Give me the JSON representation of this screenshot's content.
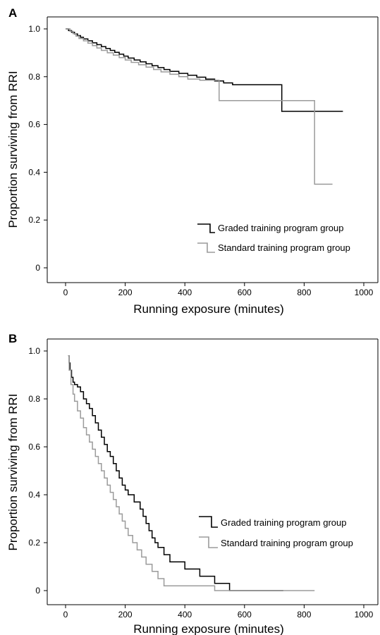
{
  "chart_data": [
    {
      "panel": "A",
      "type": "line",
      "step": true,
      "xlabel": "Running exposure (minutes)",
      "ylabel": "Proportion surviving from RRI",
      "xlim": [
        0,
        1000
      ],
      "ylim": [
        0,
        1.0
      ],
      "xticks": [
        "0",
        "200",
        "400",
        "600",
        "800",
        "1000"
      ],
      "yticks": [
        "0",
        "0.2",
        "0.4",
        "0.6",
        "0.8",
        "1.0"
      ],
      "legend_position": "bottom-right",
      "series": [
        {
          "name": "Graded training program group",
          "color": "#000000",
          "points": [
            [
              0,
              1.0
            ],
            [
              10,
              0.993
            ],
            [
              20,
              0.986
            ],
            [
              30,
              0.979
            ],
            [
              40,
              0.972
            ],
            [
              50,
              0.965
            ],
            [
              60,
              0.958
            ],
            [
              75,
              0.95
            ],
            [
              90,
              0.942
            ],
            [
              105,
              0.934
            ],
            [
              120,
              0.926
            ],
            [
              135,
              0.918
            ],
            [
              150,
              0.91
            ],
            [
              165,
              0.902
            ],
            [
              180,
              0.894
            ],
            [
              195,
              0.886
            ],
            [
              210,
              0.878
            ],
            [
              230,
              0.87
            ],
            [
              250,
              0.862
            ],
            [
              270,
              0.854
            ],
            [
              290,
              0.846
            ],
            [
              310,
              0.838
            ],
            [
              330,
              0.83
            ],
            [
              350,
              0.822
            ],
            [
              380,
              0.814
            ],
            [
              410,
              0.806
            ],
            [
              440,
              0.798
            ],
            [
              470,
              0.79
            ],
            [
              500,
              0.782
            ],
            [
              530,
              0.774
            ],
            [
              560,
              0.766
            ],
            [
              725,
              0.655
            ],
            [
              930,
              0.655
            ]
          ]
        },
        {
          "name": "Standard training program group",
          "color": "#9b9b9b",
          "points": [
            [
              0,
              1.0
            ],
            [
              15,
              0.99
            ],
            [
              25,
              0.98
            ],
            [
              35,
              0.97
            ],
            [
              45,
              0.96
            ],
            [
              60,
              0.95
            ],
            [
              75,
              0.94
            ],
            [
              90,
              0.93
            ],
            [
              105,
              0.92
            ],
            [
              120,
              0.91
            ],
            [
              140,
              0.9
            ],
            [
              160,
              0.89
            ],
            [
              180,
              0.88
            ],
            [
              200,
              0.87
            ],
            [
              220,
              0.86
            ],
            [
              245,
              0.85
            ],
            [
              270,
              0.84
            ],
            [
              295,
              0.83
            ],
            [
              320,
              0.82
            ],
            [
              350,
              0.81
            ],
            [
              380,
              0.8
            ],
            [
              410,
              0.79
            ],
            [
              450,
              0.785
            ],
            [
              515,
              0.7
            ],
            [
              835,
              0.35
            ],
            [
              895,
              0.35
            ]
          ]
        }
      ]
    },
    {
      "panel": "B",
      "type": "line",
      "step": true,
      "xlabel": "Running exposure (minutes)",
      "ylabel": "Proportion surviving from RRI",
      "xlim": [
        0,
        1000
      ],
      "ylim": [
        0,
        1.0
      ],
      "xticks": [
        "0",
        "200",
        "400",
        "600",
        "800",
        "1000"
      ],
      "yticks": [
        "0",
        "0.2",
        "0.4",
        "0.6",
        "0.8",
        "1.0"
      ],
      "legend_position": "right",
      "series": [
        {
          "name": "Graded training program group",
          "color": "#000000",
          "points": [
            [
              10,
              0.98
            ],
            [
              12,
              0.95
            ],
            [
              15,
              0.92
            ],
            [
              20,
              0.89
            ],
            [
              25,
              0.87
            ],
            [
              30,
              0.86
            ],
            [
              40,
              0.85
            ],
            [
              50,
              0.83
            ],
            [
              60,
              0.8
            ],
            [
              70,
              0.78
            ],
            [
              80,
              0.76
            ],
            [
              90,
              0.73
            ],
            [
              100,
              0.7
            ],
            [
              110,
              0.67
            ],
            [
              120,
              0.64
            ],
            [
              130,
              0.61
            ],
            [
              140,
              0.58
            ],
            [
              150,
              0.56
            ],
            [
              160,
              0.53
            ],
            [
              170,
              0.5
            ],
            [
              180,
              0.47
            ],
            [
              190,
              0.44
            ],
            [
              200,
              0.42
            ],
            [
              210,
              0.4
            ],
            [
              230,
              0.37
            ],
            [
              250,
              0.34
            ],
            [
              260,
              0.31
            ],
            [
              270,
              0.28
            ],
            [
              280,
              0.25
            ],
            [
              290,
              0.22
            ],
            [
              300,
              0.2
            ],
            [
              310,
              0.18
            ],
            [
              330,
              0.15
            ],
            [
              350,
              0.12
            ],
            [
              400,
              0.09
            ],
            [
              450,
              0.06
            ],
            [
              500,
              0.03
            ],
            [
              550,
              0.0
            ],
            [
              730,
              0.0
            ]
          ]
        },
        {
          "name": "Standard training program group",
          "color": "#9b9b9b",
          "points": [
            [
              8,
              0.98
            ],
            [
              12,
              0.92
            ],
            [
              18,
              0.86
            ],
            [
              25,
              0.82
            ],
            [
              30,
              0.79
            ],
            [
              40,
              0.75
            ],
            [
              50,
              0.72
            ],
            [
              60,
              0.68
            ],
            [
              70,
              0.65
            ],
            [
              80,
              0.62
            ],
            [
              90,
              0.59
            ],
            [
              100,
              0.56
            ],
            [
              110,
              0.53
            ],
            [
              120,
              0.5
            ],
            [
              130,
              0.47
            ],
            [
              140,
              0.44
            ],
            [
              150,
              0.41
            ],
            [
              160,
              0.38
            ],
            [
              170,
              0.35
            ],
            [
              180,
              0.32
            ],
            [
              190,
              0.29
            ],
            [
              200,
              0.26
            ],
            [
              210,
              0.23
            ],
            [
              225,
              0.2
            ],
            [
              240,
              0.17
            ],
            [
              255,
              0.14
            ],
            [
              270,
              0.11
            ],
            [
              290,
              0.08
            ],
            [
              310,
              0.05
            ],
            [
              330,
              0.02
            ],
            [
              500,
              0.0
            ],
            [
              835,
              0.0
            ]
          ]
        }
      ]
    }
  ]
}
